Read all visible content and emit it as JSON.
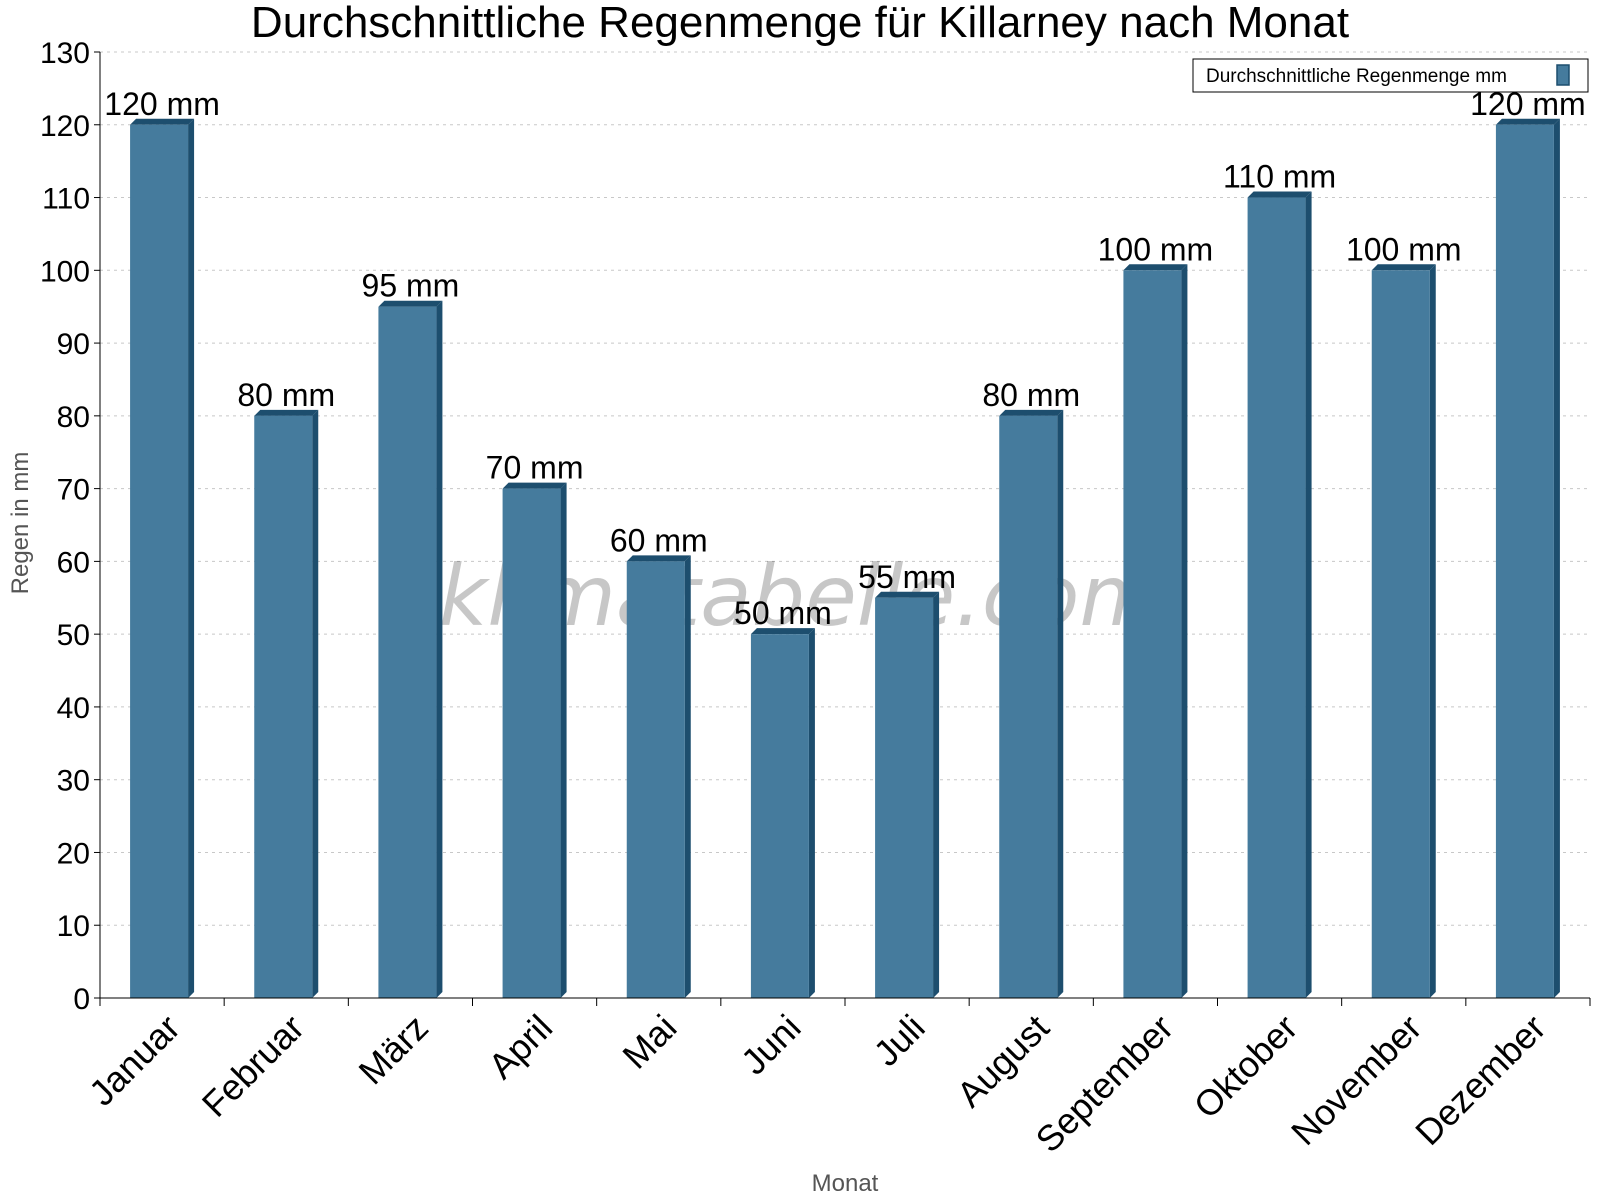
{
  "chart_data": {
    "type": "bar",
    "title": "Durchschnittliche Regenmenge für Killarney nach Monat",
    "xlabel": "Monat",
    "ylabel": "Regen in mm",
    "ylim": [
      0,
      130
    ],
    "yticks": [
      0,
      10,
      20,
      30,
      40,
      50,
      60,
      70,
      80,
      90,
      100,
      110,
      120,
      130
    ],
    "categories": [
      "Januar",
      "Februar",
      "März",
      "April",
      "Mai",
      "Juni",
      "Juli",
      "August",
      "September",
      "Oktober",
      "November",
      "Dezember"
    ],
    "series": [
      {
        "name": "Durchschnittliche Regenmenge mm",
        "values": [
          120,
          80,
          95,
          70,
          60,
          50,
          55,
          80,
          100,
          110,
          100,
          120
        ],
        "labels": [
          "120 mm",
          "80 mm",
          "95 mm",
          "70 mm",
          "60 mm",
          "50 mm",
          "55 mm",
          "80 mm",
          "100 mm",
          "110 mm",
          "100 mm",
          "120 mm"
        ],
        "color": "#457b9d",
        "edge_color": "#1d4e6e"
      }
    ],
    "grid": true,
    "legend_position": "top-right",
    "watermark": "klimatabelle.com"
  }
}
